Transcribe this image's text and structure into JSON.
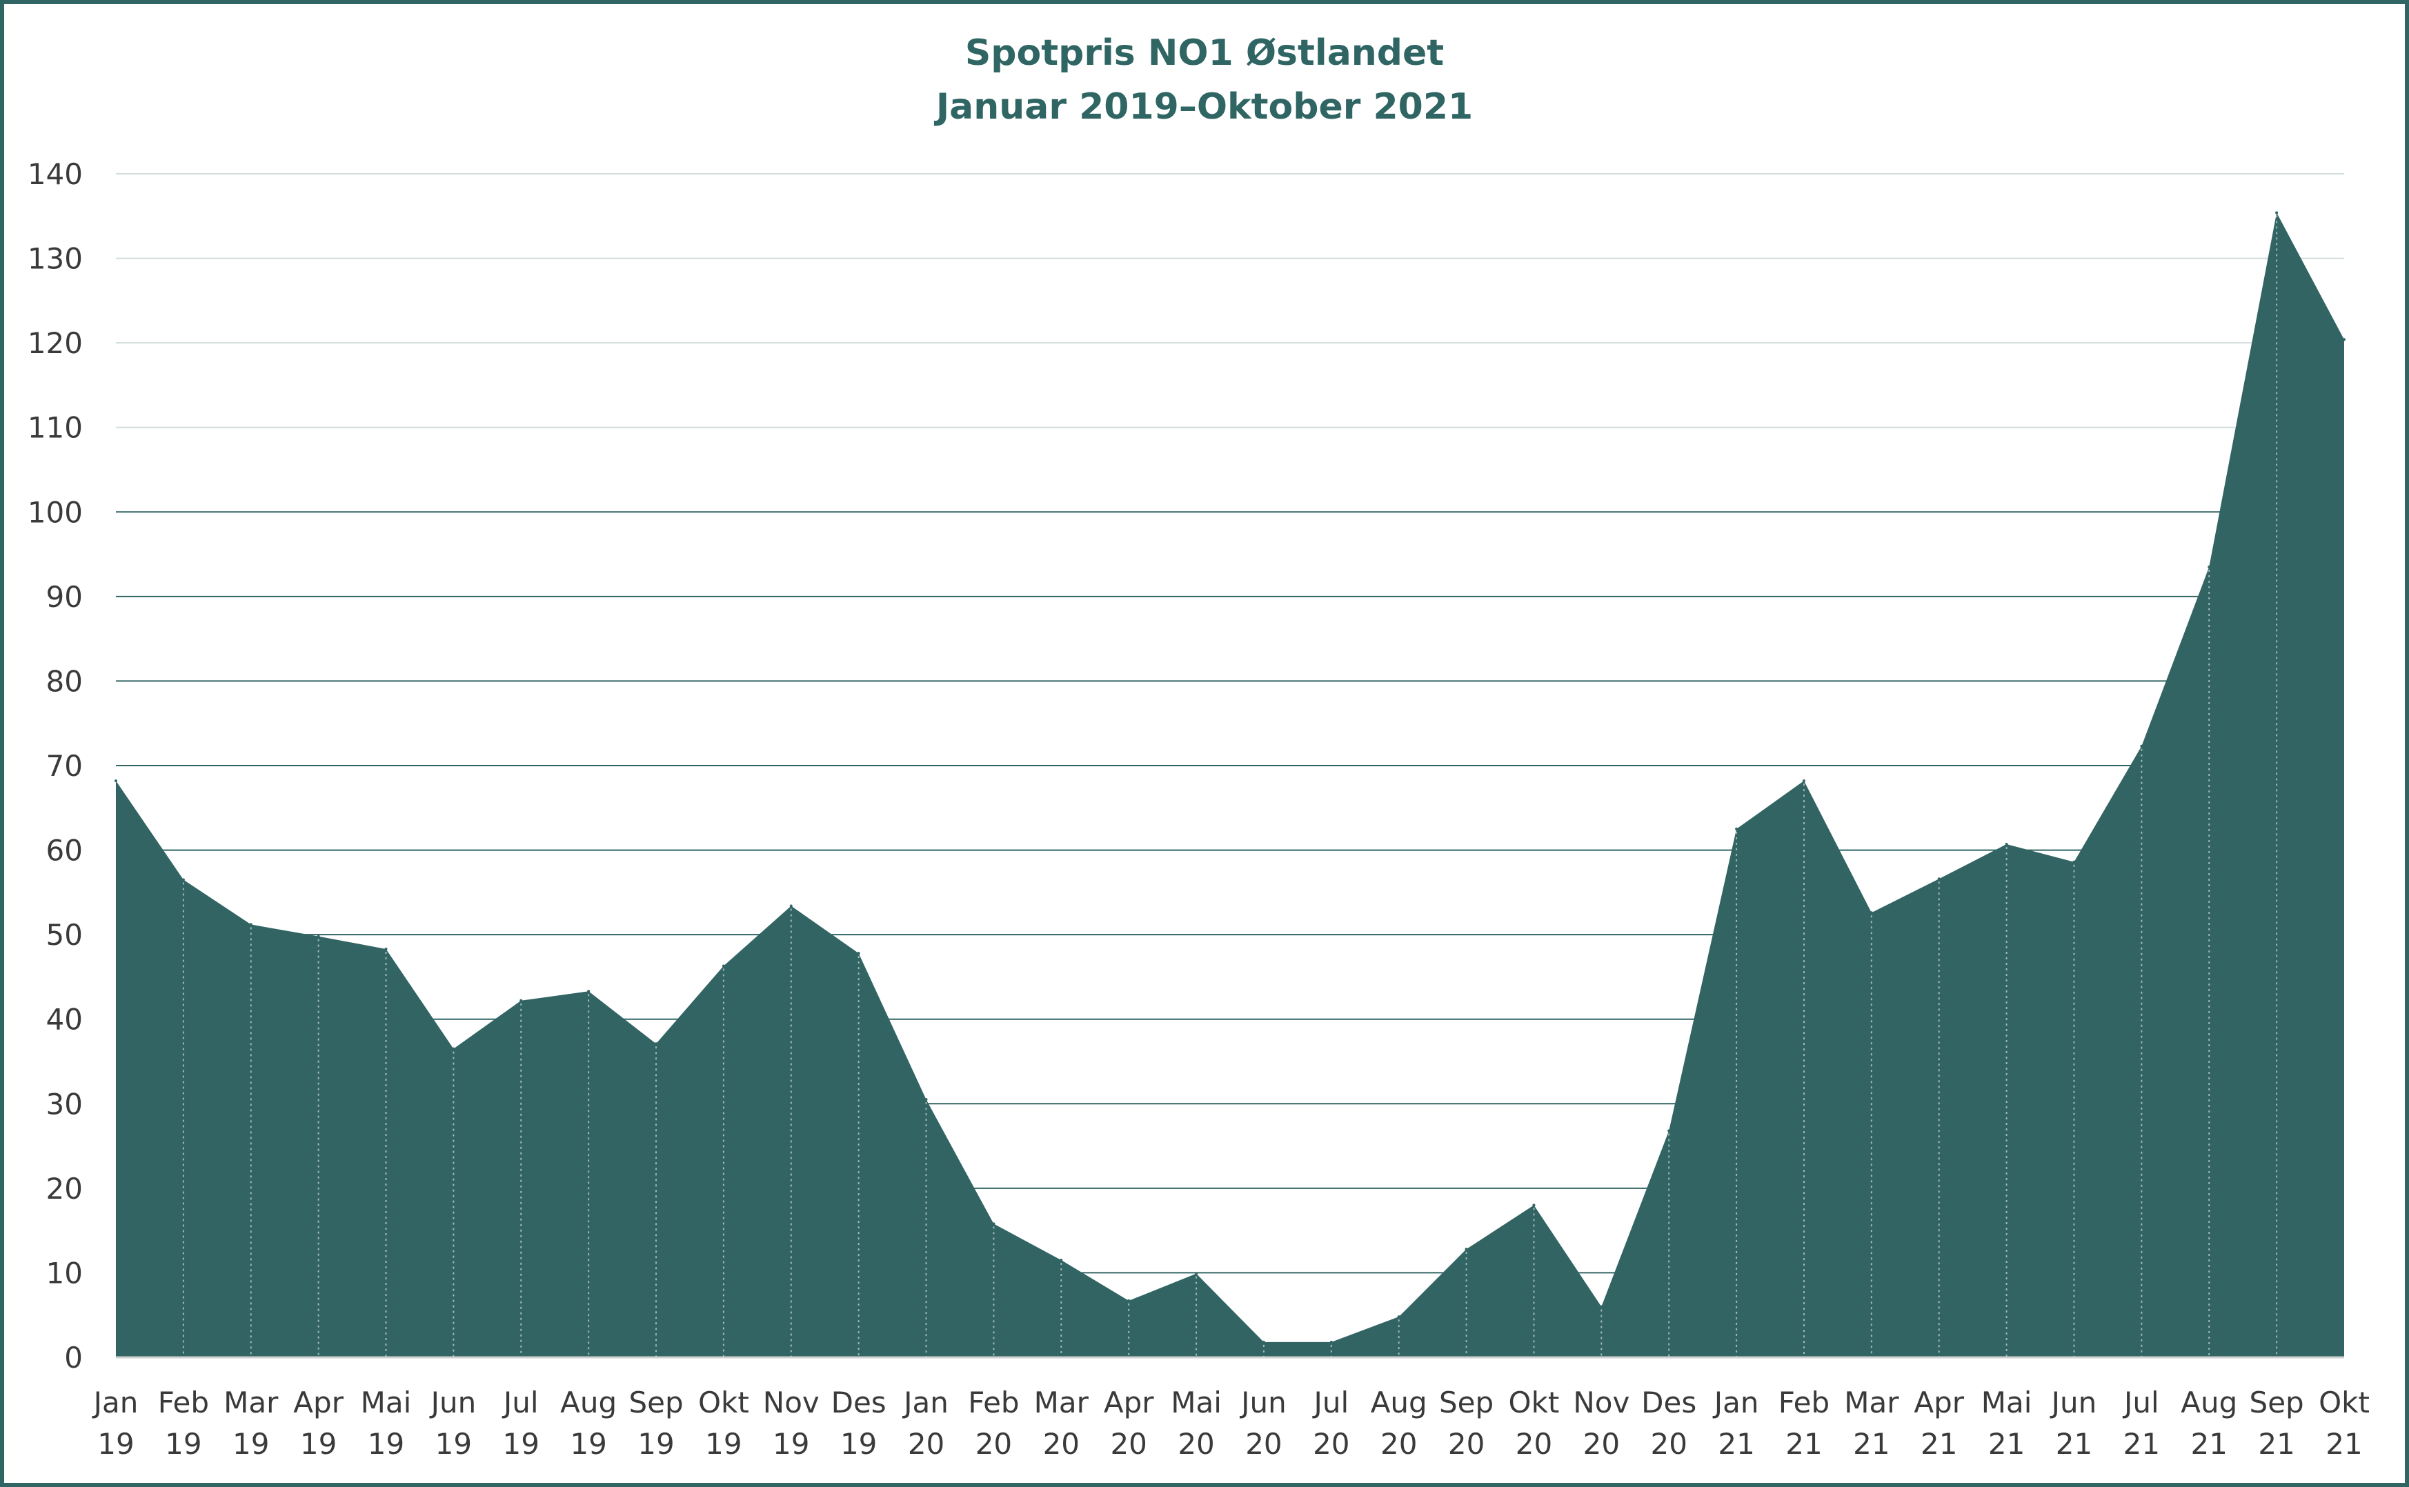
{
  "chart_data": {
    "type": "area",
    "title": "Spotpris NO1 Østlandet",
    "subtitle": "Januar 2019–Oktober 2021",
    "xlabel": "",
    "ylabel": "",
    "ylim": [
      0,
      140
    ],
    "yticks": [
      0,
      10,
      20,
      30,
      40,
      50,
      60,
      70,
      80,
      90,
      100,
      110,
      120,
      130,
      140
    ],
    "grid": true,
    "legend": "none",
    "colors": {
      "fill": "#316463",
      "grid": "#316463",
      "title": "#2f6563",
      "border": "#2f6563"
    },
    "categories": [
      [
        "Jan",
        "19"
      ],
      [
        "Feb",
        "19"
      ],
      [
        "Mar",
        "19"
      ],
      [
        "Apr",
        "19"
      ],
      [
        "Mai",
        "19"
      ],
      [
        "Jun",
        "19"
      ],
      [
        "Jul",
        "19"
      ],
      [
        "Aug",
        "19"
      ],
      [
        "Sep",
        "19"
      ],
      [
        "Okt",
        "19"
      ],
      [
        "Nov",
        "19"
      ],
      [
        "Des",
        "19"
      ],
      [
        "Jan",
        "20"
      ],
      [
        "Feb",
        "20"
      ],
      [
        "Mar",
        "20"
      ],
      [
        "Apr",
        "20"
      ],
      [
        "Mai",
        "20"
      ],
      [
        "Jun",
        "20"
      ],
      [
        "Jul",
        "20"
      ],
      [
        "Aug",
        "20"
      ],
      [
        "Sep",
        "20"
      ],
      [
        "Okt",
        "20"
      ],
      [
        "Nov",
        "20"
      ],
      [
        "Des",
        "20"
      ],
      [
        "Jan",
        "21"
      ],
      [
        "Feb",
        "21"
      ],
      [
        "Mar",
        "21"
      ],
      [
        "Apr",
        "21"
      ],
      [
        "Mai",
        "21"
      ],
      [
        "Jun",
        "21"
      ],
      [
        "Jul",
        "21"
      ],
      [
        "Aug",
        "21"
      ],
      [
        "Sep",
        "21"
      ],
      [
        "Okt",
        "21"
      ]
    ],
    "series": [
      {
        "values": [
          68.2,
          56.5,
          51.2,
          49.8,
          48.3,
          36.5,
          42.2,
          43.3,
          37.1,
          46.3,
          53.4,
          47.8,
          30.5,
          15.8,
          11.5,
          6.7,
          9.9,
          1.8,
          1.8,
          4.8,
          12.8,
          18.0,
          6.0,
          26.8,
          62.5,
          68.2,
          52.6,
          56.6,
          60.7,
          58.6,
          72.3,
          93.5,
          135.4,
          120.4
        ]
      }
    ]
  }
}
